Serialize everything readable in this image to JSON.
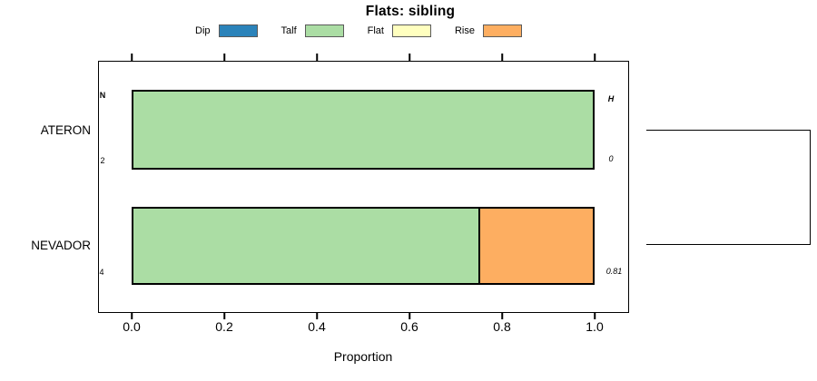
{
  "title": "Flats: sibling",
  "legend": {
    "items": [
      {
        "label": "Dip",
        "color": "#2B83BA"
      },
      {
        "label": "Talf",
        "color": "#ABDDA4"
      },
      {
        "label": "Flat",
        "color": "#FFFFBF"
      },
      {
        "label": "Rise",
        "color": "#FDAE61"
      }
    ]
  },
  "chart_data": {
    "type": "bar",
    "subtype": "horizontal-stacked-proportion-spineplot",
    "title": "Flats: sibling",
    "xlabel": "Proportion",
    "xlim": [
      0,
      1
    ],
    "xticks": [
      0.0,
      0.2,
      0.4,
      0.6,
      0.8,
      1.0
    ],
    "xtick_labels": [
      "0.0",
      "0.2",
      "0.4",
      "0.6",
      "0.8",
      "1.0"
    ],
    "categories": [
      "ATERON",
      "NEVADOR"
    ],
    "series": [
      {
        "name": "Dip",
        "color": "#2B83BA",
        "values": [
          0,
          0
        ]
      },
      {
        "name": "Talf",
        "color": "#ABDDA4",
        "values": [
          1.0,
          0.75
        ]
      },
      {
        "name": "Flat",
        "color": "#FFFFBF",
        "values": [
          0,
          0
        ]
      },
      {
        "name": "Rise",
        "color": "#FDAE61",
        "values": [
          0,
          0.25
        ]
      }
    ],
    "annotations": {
      "count_header": "N",
      "entropy_header": "H",
      "counts": [
        "2",
        "4"
      ],
      "entropy": [
        "0",
        "0.81"
      ]
    },
    "legend_position": "top",
    "grid": false,
    "right_margin_feature": "two-leaf cluster bracket joining ATERON and NEVADOR rows"
  }
}
